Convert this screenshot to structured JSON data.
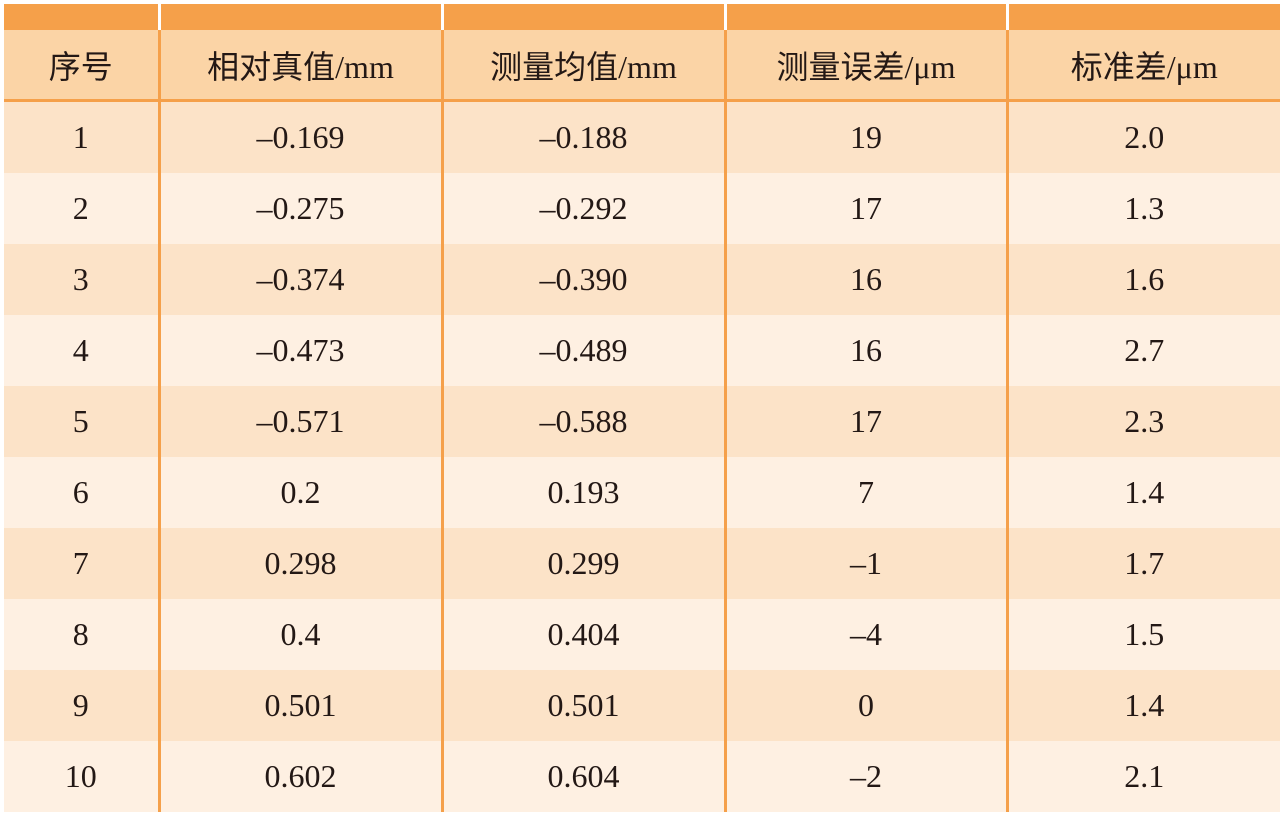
{
  "table": {
    "headers": [
      "序号",
      "相对真值/mm",
      "测量均值/mm",
      "测量误差/μm",
      "标准差/μm"
    ],
    "rows": [
      [
        "1",
        "–0.169",
        "–0.188",
        "19",
        "2.0"
      ],
      [
        "2",
        "–0.275",
        "–0.292",
        "17",
        "1.3"
      ],
      [
        "3",
        "–0.374",
        "–0.390",
        "16",
        "1.6"
      ],
      [
        "4",
        "–0.473",
        "–0.489",
        "16",
        "2.7"
      ],
      [
        "5",
        "–0.571",
        "–0.588",
        "17",
        "2.3"
      ],
      [
        "6",
        "0.2",
        "0.193",
        "7",
        "1.4"
      ],
      [
        "7",
        "0.298",
        "0.299",
        "–1",
        "1.7"
      ],
      [
        "8",
        "0.4",
        "0.404",
        "–4",
        "1.5"
      ],
      [
        "9",
        "0.501",
        "0.501",
        "0",
        "1.4"
      ],
      [
        "10",
        "0.602",
        "0.604",
        "–2",
        "2.1"
      ]
    ]
  },
  "colors": {
    "band": "#f5a04a",
    "header_bg": "#fbd4a6",
    "row_odd": "#fce3c8",
    "row_even": "#fef0e2",
    "text": "#231815"
  }
}
